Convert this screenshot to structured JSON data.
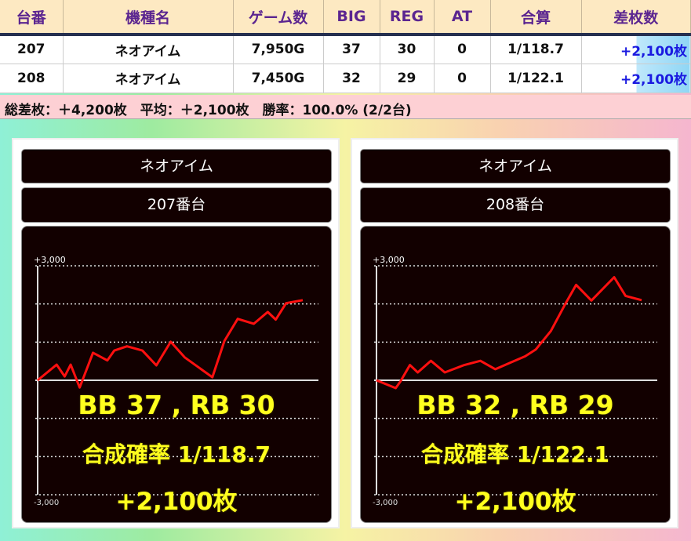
{
  "table": {
    "headers": [
      "台番",
      "機種名",
      "ゲーム数",
      "BIG",
      "REG",
      "AT",
      "合算",
      "差枚数"
    ],
    "rows": [
      {
        "unit": "207",
        "machine": "ネオアイム",
        "games": "7,950G",
        "big": "37",
        "reg": "30",
        "at": "0",
        "combined": "1/118.7",
        "diff": "+2,100枚"
      },
      {
        "unit": "208",
        "machine": "ネオアイム",
        "games": "7,450G",
        "big": "32",
        "reg": "29",
        "at": "0",
        "combined": "1/122.1",
        "diff": "+2,100枚"
      }
    ]
  },
  "summary": "総差枚：＋4,200枚　平均：＋2,100枚　勝率：100.0% (2/2台)",
  "colors": {
    "line": "#ff1010",
    "overlay_text": "#ffff1e",
    "header_text": "#5b2590",
    "diff_text": "#1a1ae0"
  },
  "chart_data": [
    {
      "type": "line",
      "machine": "ネオアイム",
      "unit_label": "207番台",
      "ylim": [
        -3000,
        3000
      ],
      "ytick_labels": [
        "+3,000",
        "-3,000"
      ],
      "grid": true,
      "x": [
        0,
        570,
        810,
        990,
        1260,
        1660,
        2090,
        2300,
        2680,
        3140,
        3560,
        3990,
        4410,
        4840,
        5240,
        5600,
        6000,
        6480,
        6900,
        7140,
        7450,
        7950
      ],
      "y": [
        0,
        410,
        100,
        410,
        -190,
        720,
        520,
        780,
        890,
        780,
        390,
        1010,
        600,
        330,
        80,
        1030,
        1610,
        1480,
        1790,
        1590,
        2020,
        2100
      ],
      "overlay": {
        "bonus": "BB 37 , RB 30",
        "prob": "合成確率  1/118.7",
        "diff": "+2,100枚"
      }
    },
    {
      "type": "line",
      "machine": "ネオアイム",
      "unit_label": "208番台",
      "ylim": [
        -3000,
        3000
      ],
      "ytick_labels": [
        "+3,000",
        "-3,000"
      ],
      "grid": true,
      "x": [
        0,
        540,
        670,
        940,
        1160,
        1530,
        1920,
        2470,
        2920,
        3340,
        3770,
        4180,
        4480,
        4900,
        5300,
        5610,
        6040,
        6680,
        7000,
        7450
      ],
      "y": [
        0,
        -205,
        -35,
        400,
        205,
        510,
        205,
        400,
        510,
        290,
        465,
        630,
        810,
        1290,
        1990,
        2500,
        2090,
        2700,
        2210,
        2100
      ],
      "overlay": {
        "bonus": "BB 32 , RB 29",
        "prob": "合成確率  1/122.1",
        "diff": "+2,100枚"
      }
    }
  ]
}
